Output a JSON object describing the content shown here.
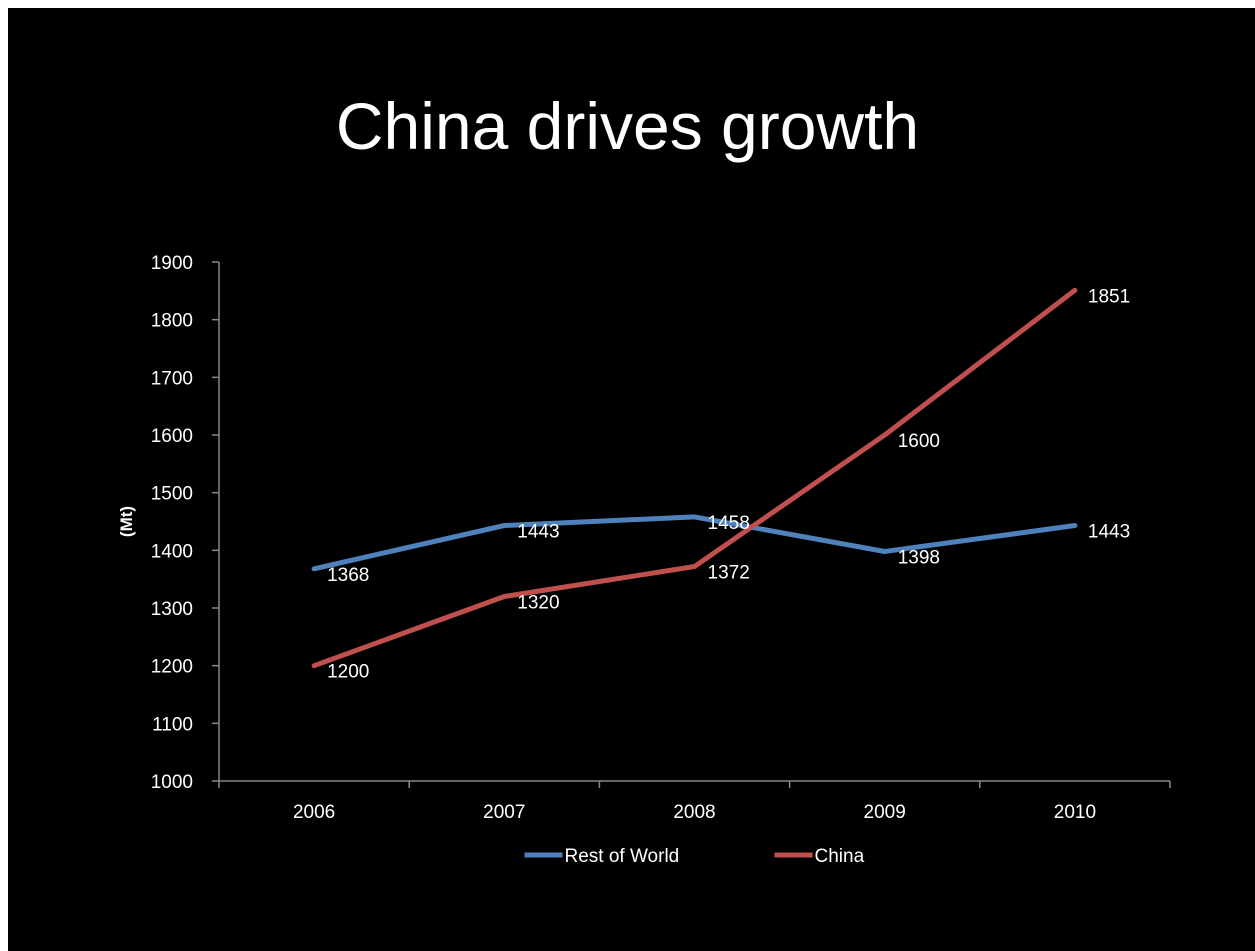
{
  "slide": {
    "title": "China drives growth"
  },
  "chart_data": {
    "type": "line",
    "title": "China drives growth",
    "xlabel": "",
    "ylabel": "(Mt)",
    "categories": [
      "2006",
      "2007",
      "2008",
      "2009",
      "2010"
    ],
    "ylim": [
      1000,
      1900
    ],
    "yticks": [
      1000,
      1100,
      1200,
      1300,
      1400,
      1500,
      1600,
      1700,
      1800,
      1900
    ],
    "grid": false,
    "legend": "bottom",
    "series": [
      {
        "name": "Rest of World",
        "color": "#4f81bd",
        "values": [
          1368,
          1443,
          1458,
          1398,
          1443
        ]
      },
      {
        "name": "China",
        "color": "#c0504d",
        "values": [
          1200,
          1320,
          1372,
          1600,
          1851
        ]
      }
    ]
  }
}
